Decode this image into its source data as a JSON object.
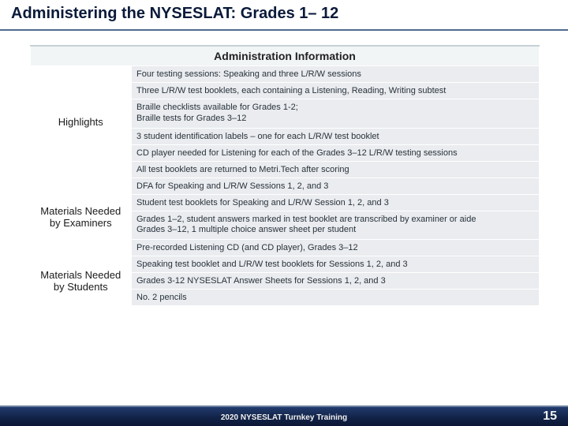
{
  "title": "Administering the NYSESLAT: Grades 1– 12",
  "table": {
    "header": "Administration Information",
    "sections": [
      {
        "label": "Highlights",
        "rows": [
          "Four testing sessions: Speaking and three L/R/W sessions",
          "Three L/R/W test booklets, each containing a Listening, Reading, Writing subtest",
          "Braille checklists available for Grades 1-2;\nBraille tests for Grades 3–12",
          "3 student identification labels – one for each L/R/W test booklet",
          "CD player needed for Listening for each of the Grades 3–12 L/R/W testing sessions",
          "All test booklets are returned to Metri.Tech after scoring"
        ]
      },
      {
        "label": "Materials Needed by Examiners",
        "rows": [
          "DFA for Speaking and L/R/W Sessions 1, 2, and 3",
          "Student test booklets for Speaking and L/R/W Session 1, 2, and 3",
          "Grades 1–2, student answers marked in test booklet are transcribed by examiner or aide\nGrades 3–12, 1 multiple choice answer sheet per student",
          "Pre-recorded Listening CD (and CD player), Grades 3–12"
        ]
      },
      {
        "label": "Materials Needed by Students",
        "rows": [
          "Speaking test booklet and L/R/W test booklets for Sessions 1, 2, and 3",
          "Grades 3-12 NYSESLAT Answer Sheets for Sessions 1, 2, and 3",
          "No. 2 pencils"
        ]
      }
    ]
  },
  "footer": "2020 NYSESLAT Turnkey Training",
  "page_number": "15"
}
